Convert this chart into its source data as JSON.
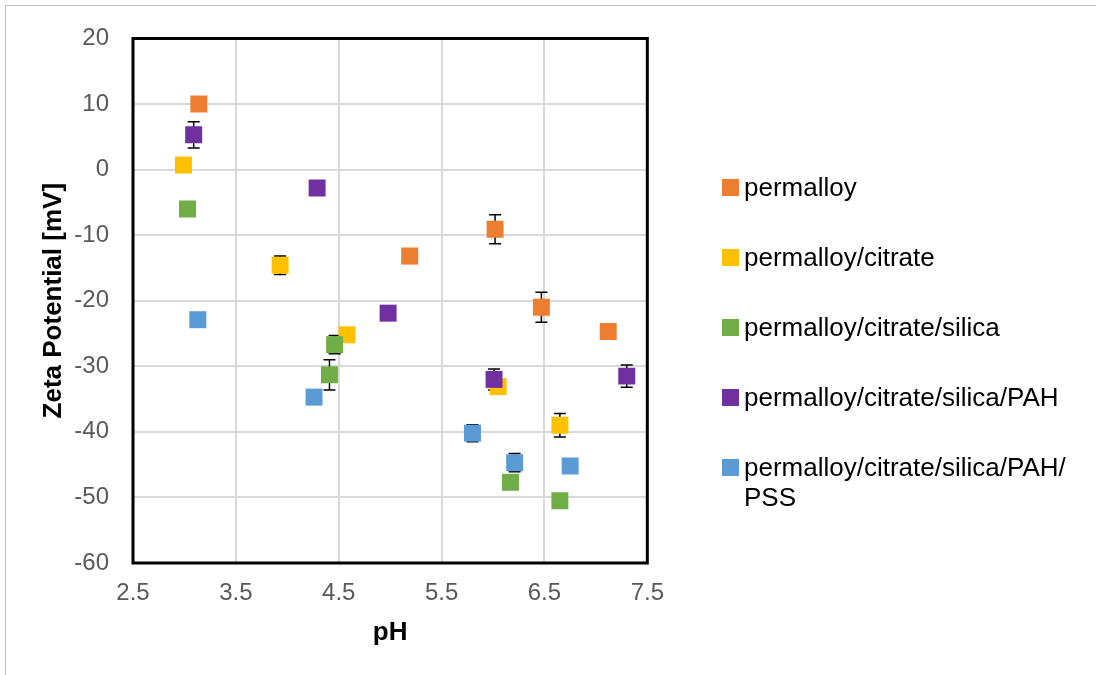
{
  "chart_data": {
    "type": "scatter",
    "xlabel": "pH",
    "ylabel": "Zeta Potential [mV]",
    "xlim": [
      2.5,
      7.5
    ],
    "xticks": [
      2.5,
      3.5,
      4.5,
      5.5,
      6.5,
      7.5
    ],
    "ylim": [
      -60,
      20
    ],
    "yticks": [
      -60,
      -50,
      -40,
      -30,
      -20,
      -10,
      0,
      10,
      20
    ],
    "grid": true,
    "legend": "right",
    "marker": "square",
    "series": [
      {
        "name": "permalloy",
        "color": "#ed7d31",
        "x": [
          3.14,
          5.19,
          6.02,
          6.47,
          7.12
        ],
        "values": [
          10.0,
          -13.2,
          -9.1,
          -21.0,
          -24.7
        ],
        "errors": [
          null,
          null,
          2.2,
          2.3,
          null
        ]
      },
      {
        "name": "permalloy/citrate",
        "color": "#ffc000",
        "x": [
          2.99,
          3.93,
          4.58,
          6.05,
          6.65
        ],
        "values": [
          0.7,
          -14.6,
          -25.2,
          -33.1,
          -39.0
        ],
        "errors": [
          null,
          1.4,
          null,
          null,
          1.8
        ]
      },
      {
        "name": "permalloy/citrate/silica",
        "color": "#70ad47",
        "x": [
          3.03,
          4.46,
          4.41,
          6.17,
          6.65
        ],
        "values": [
          -6.0,
          -26.7,
          -31.3,
          -47.7,
          -50.5
        ],
        "errors": [
          null,
          1.4,
          2.3,
          null,
          null
        ]
      },
      {
        "name": "permalloy/citrate/silica/PAH",
        "color": "#7030a0",
        "x": [
          3.09,
          4.29,
          4.98,
          6.01,
          7.3
        ],
        "values": [
          5.3,
          -2.8,
          -21.9,
          -32.0,
          -31.5
        ],
        "errors": [
          2.0,
          null,
          null,
          1.6,
          1.7
        ]
      },
      {
        "name": "permalloy/citrate/silica/PAH/PSS",
        "color": "#5b9bd5",
        "x": [
          3.13,
          4.26,
          5.8,
          6.21,
          6.75
        ],
        "values": [
          -22.9,
          -34.7,
          -40.2,
          -44.7,
          -45.2
        ],
        "errors": [
          null,
          null,
          1.3,
          1.4,
          null
        ]
      }
    ]
  }
}
